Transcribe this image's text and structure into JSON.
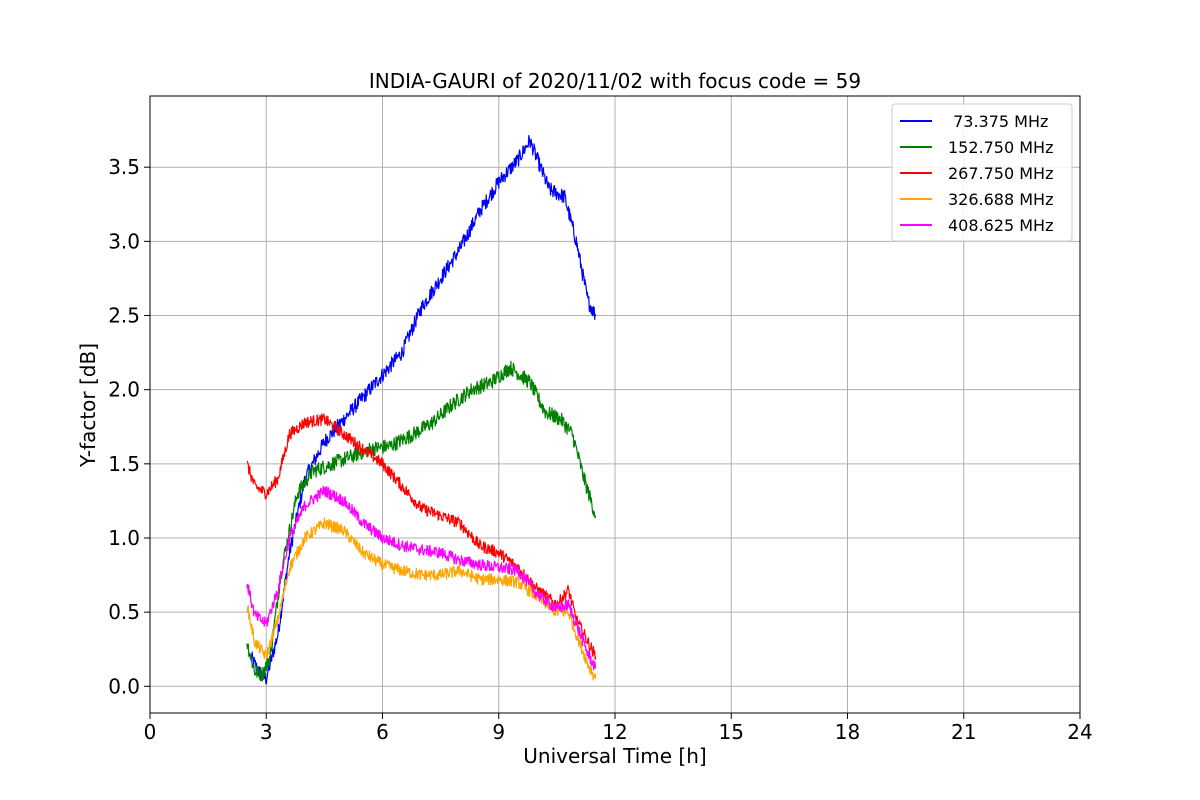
{
  "chart_data": {
    "type": "line",
    "title": "INDIA-GAURI of 2020/11/02 with focus code = 59",
    "xlabel": "Universal Time [h]",
    "ylabel": "Y-factor [dB]",
    "xlim": [
      0,
      24
    ],
    "ylim": [
      -0.18,
      3.98
    ],
    "x_ticks": [
      "0",
      "3",
      "6",
      "9",
      "12",
      "15",
      "18",
      "21",
      "24"
    ],
    "y_ticks": [
      "0.0",
      "0.5",
      "1.0",
      "1.5",
      "2.0",
      "2.5",
      "3.0",
      "3.5"
    ],
    "grid": true,
    "legend_position": "top-right",
    "series": [
      {
        "name": " 73.375 MHz",
        "color": "#0000ff",
        "x": [
          2.6,
          2.8,
          3.0,
          3.3,
          3.6,
          4.0,
          4.5,
          5.0,
          5.5,
          6.0,
          6.5,
          7.0,
          7.5,
          8.0,
          8.5,
          9.0,
          9.5,
          9.8,
          10.0,
          10.3,
          10.7,
          11.0,
          11.3,
          11.5
        ],
        "y": [
          0.2,
          0.1,
          0.05,
          0.35,
          0.9,
          1.4,
          1.65,
          1.8,
          1.95,
          2.1,
          2.25,
          2.55,
          2.75,
          2.95,
          3.2,
          3.4,
          3.55,
          3.68,
          3.55,
          3.35,
          3.3,
          3.0,
          2.6,
          2.5
        ],
        "noise": 0.05
      },
      {
        "name": "152.750 MHz",
        "color": "#008000",
        "x": [
          2.5,
          2.7,
          2.9,
          3.1,
          3.4,
          3.8,
          4.2,
          4.7,
          5.2,
          5.7,
          6.2,
          6.8,
          7.3,
          7.8,
          8.3,
          8.8,
          9.3,
          9.8,
          10.2,
          10.6,
          10.9,
          11.2,
          11.5
        ],
        "y": [
          0.3,
          0.1,
          0.08,
          0.2,
          0.8,
          1.3,
          1.45,
          1.5,
          1.55,
          1.6,
          1.62,
          1.7,
          1.78,
          1.9,
          2.0,
          2.05,
          2.15,
          2.05,
          1.85,
          1.8,
          1.7,
          1.4,
          1.15
        ],
        "noise": 0.05
      },
      {
        "name": "267.750 MHz",
        "color": "#ff0000",
        "x": [
          2.5,
          2.7,
          3.0,
          3.3,
          3.6,
          4.0,
          4.5,
          5.0,
          5.5,
          6.0,
          6.5,
          7.0,
          7.5,
          8.0,
          8.5,
          9.0,
          9.5,
          10.0,
          10.5,
          10.8,
          11.0,
          11.3,
          11.5
        ],
        "y": [
          1.5,
          1.35,
          1.3,
          1.4,
          1.7,
          1.78,
          1.8,
          1.7,
          1.6,
          1.5,
          1.35,
          1.2,
          1.15,
          1.1,
          0.95,
          0.9,
          0.8,
          0.65,
          0.55,
          0.65,
          0.45,
          0.3,
          0.2
        ],
        "noise": 0.04
      },
      {
        "name": "326.688 MHz",
        "color": "#ffa500",
        "x": [
          2.5,
          2.7,
          3.0,
          3.3,
          3.6,
          4.0,
          4.5,
          5.0,
          5.5,
          6.0,
          6.5,
          7.0,
          7.5,
          8.0,
          8.5,
          9.0,
          9.5,
          10.0,
          10.5,
          10.8,
          11.0,
          11.3,
          11.5
        ],
        "y": [
          0.55,
          0.3,
          0.2,
          0.45,
          0.8,
          1.0,
          1.1,
          1.05,
          0.9,
          0.82,
          0.78,
          0.75,
          0.75,
          0.78,
          0.72,
          0.72,
          0.7,
          0.6,
          0.5,
          0.5,
          0.35,
          0.15,
          0.05
        ],
        "noise": 0.04
      },
      {
        "name": "408.625 MHz",
        "color": "#ff00ff",
        "x": [
          2.5,
          2.7,
          3.0,
          3.3,
          3.6,
          4.0,
          4.5,
          5.0,
          5.5,
          6.0,
          6.5,
          7.0,
          7.5,
          8.0,
          8.5,
          9.0,
          9.5,
          10.0,
          10.5,
          10.8,
          11.0,
          11.3,
          11.5
        ],
        "y": [
          0.7,
          0.48,
          0.42,
          0.65,
          1.0,
          1.22,
          1.32,
          1.25,
          1.1,
          1.0,
          0.95,
          0.92,
          0.9,
          0.85,
          0.82,
          0.8,
          0.78,
          0.62,
          0.52,
          0.55,
          0.42,
          0.22,
          0.12
        ],
        "noise": 0.04
      }
    ]
  }
}
